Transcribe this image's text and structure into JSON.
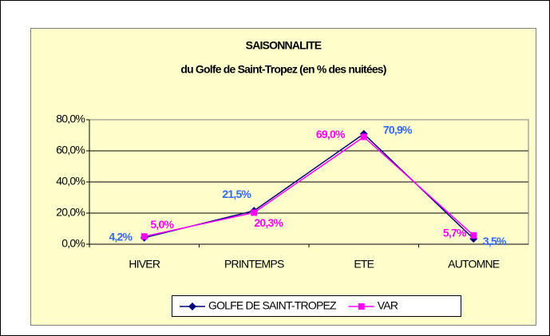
{
  "chart_data": {
    "type": "line",
    "title": "SAISONNALITE",
    "subtitle": "du Golfe de Saint-Tropez (en % des nuitées)",
    "categories": [
      "HIVER",
      "PRINTEMPS",
      "ETE",
      "AUTOMNE"
    ],
    "series": [
      {
        "name": "GOLFE DE SAINT-TROPEZ",
        "color": "#000080",
        "label_color": "#3366ff",
        "marker": "diamond",
        "values": [
          4.2,
          21.5,
          70.9,
          3.5
        ],
        "value_labels": [
          "4,2%",
          "21,5%",
          "70,9%",
          "3,5%"
        ]
      },
      {
        "name": "VAR",
        "color": "#ff00ff",
        "label_color": "#ff00ff",
        "marker": "square",
        "values": [
          5.0,
          20.3,
          69.0,
          5.7
        ],
        "value_labels": [
          "5,0%",
          "20,3%",
          "69,0%",
          "5,7%"
        ]
      }
    ],
    "ylim": [
      0,
      80
    ],
    "yticks": [
      {
        "value": 0,
        "label": "0,0%"
      },
      {
        "value": 20,
        "label": "20,0%"
      },
      {
        "value": 40,
        "label": "40,0%"
      },
      {
        "value": 60,
        "label": "60,0%"
      },
      {
        "value": 80,
        "label": "80,0%"
      }
    ],
    "grid": true,
    "legend": "bottom"
  }
}
